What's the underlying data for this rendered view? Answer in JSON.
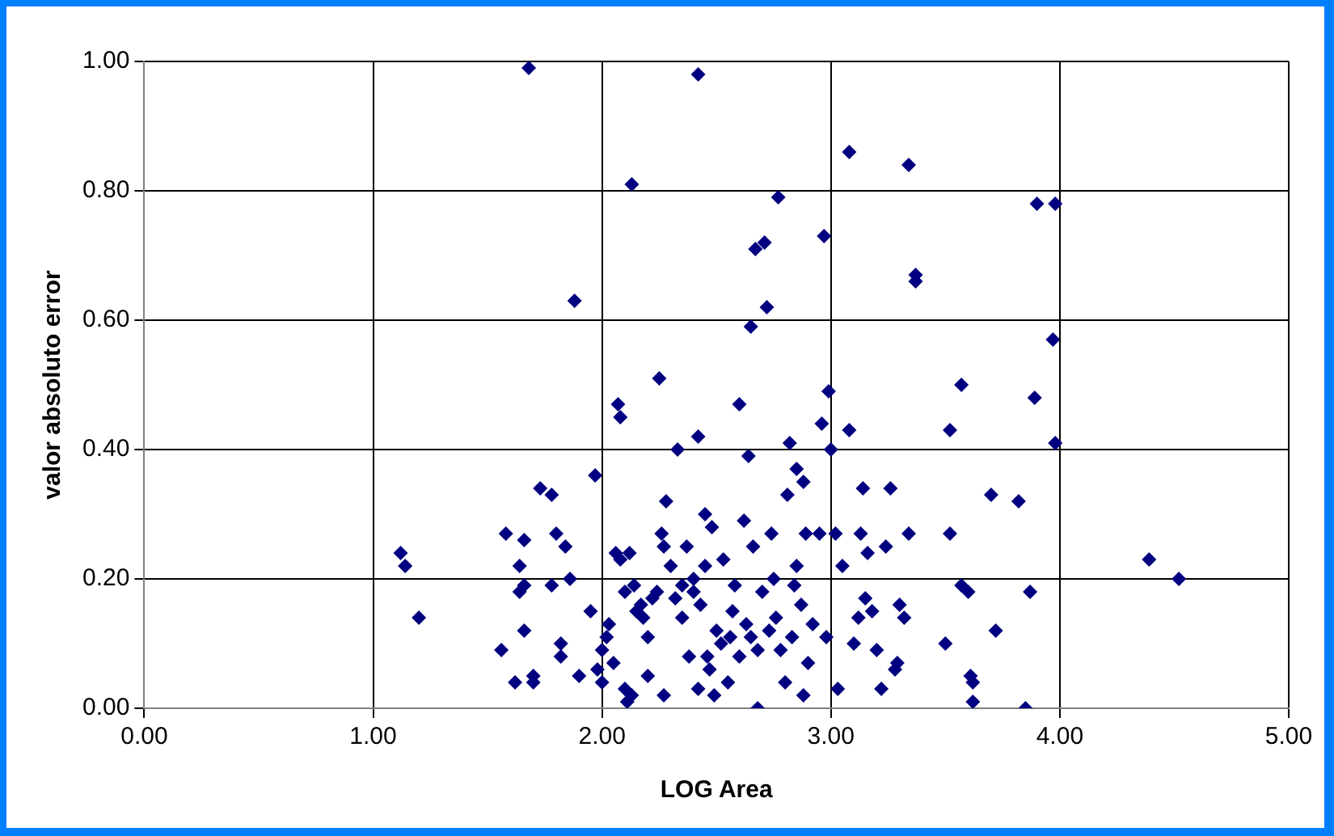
{
  "chart_data": {
    "type": "scatter",
    "xlabel": "LOG Area",
    "ylabel": "valor absoluto error",
    "marker": "diamond",
    "grid": true,
    "legend": false,
    "xlim": [
      0,
      5
    ],
    "xticks": [
      {
        "value": 0,
        "label": "0.00"
      },
      {
        "value": 1,
        "label": "1.00"
      },
      {
        "value": 2,
        "label": "2.00"
      },
      {
        "value": 3,
        "label": "3.00"
      },
      {
        "value": 4,
        "label": "4.00"
      },
      {
        "value": 5,
        "label": "5.00"
      }
    ],
    "ylim": [
      0,
      1
    ],
    "yticks": [
      {
        "value": 0,
        "label": "0.00"
      },
      {
        "value": 0.2,
        "label": "0.20"
      },
      {
        "value": 0.4,
        "label": "0.40"
      },
      {
        "value": 0.6,
        "label": "0.60"
      },
      {
        "value": 0.8,
        "label": "0.80"
      },
      {
        "value": 1,
        "label": "1.00"
      }
    ],
    "series": [
      {
        "color": "#000080",
        "x": [
          1.12,
          1.14,
          1.2,
          1.56,
          1.58,
          1.62,
          1.64,
          1.64,
          1.66,
          1.66,
          1.66,
          1.68,
          1.7,
          1.7,
          1.73,
          1.78,
          1.78,
          1.8,
          1.82,
          1.82,
          1.84,
          1.86,
          1.88,
          1.9,
          1.95,
          1.97,
          1.98,
          2.0,
          2.0,
          2.02,
          2.03,
          2.05,
          2.06,
          2.07,
          2.08,
          2.08,
          2.1,
          2.1,
          2.11,
          2.12,
          2.13,
          2.13,
          2.14,
          2.15,
          2.17,
          2.18,
          2.2,
          2.2,
          2.22,
          2.24,
          2.25,
          2.26,
          2.27,
          2.27,
          2.28,
          2.3,
          2.32,
          2.33,
          2.35,
          2.35,
          2.37,
          2.38,
          2.4,
          2.4,
          2.42,
          2.42,
          2.42,
          2.43,
          2.45,
          2.45,
          2.46,
          2.47,
          2.48,
          2.49,
          2.5,
          2.52,
          2.53,
          2.55,
          2.56,
          2.57,
          2.58,
          2.6,
          2.6,
          2.62,
          2.63,
          2.64,
          2.65,
          2.65,
          2.66,
          2.67,
          2.68,
          2.68,
          2.7,
          2.71,
          2.72,
          2.73,
          2.74,
          2.75,
          2.76,
          2.77,
          2.78,
          2.8,
          2.81,
          2.82,
          2.83,
          2.84,
          2.85,
          2.85,
          2.87,
          2.88,
          2.88,
          2.89,
          2.9,
          2.92,
          2.95,
          2.96,
          2.97,
          2.98,
          2.99,
          3.0,
          3.02,
          3.03,
          3.05,
          3.08,
          3.08,
          3.1,
          3.12,
          3.13,
          3.14,
          3.15,
          3.16,
          3.18,
          3.2,
          3.22,
          3.24,
          3.26,
          3.28,
          3.29,
          3.3,
          3.32,
          3.34,
          3.34,
          3.37,
          3.37,
          3.5,
          3.52,
          3.52,
          3.57,
          3.57,
          3.6,
          3.61,
          3.62,
          3.62,
          3.7,
          3.72,
          3.82,
          3.85,
          3.87,
          3.89,
          3.9,
          3.98,
          3.97,
          3.98,
          4.39,
          4.52
        ],
        "values": [
          0.24,
          0.22,
          0.14,
          0.09,
          0.27,
          0.04,
          0.22,
          0.18,
          0.19,
          0.26,
          0.12,
          0.99,
          0.05,
          0.04,
          0.34,
          0.33,
          0.19,
          0.27,
          0.08,
          0.1,
          0.25,
          0.2,
          0.63,
          0.05,
          0.15,
          0.36,
          0.06,
          0.04,
          0.09,
          0.11,
          0.13,
          0.07,
          0.24,
          0.47,
          0.45,
          0.23,
          0.18,
          0.03,
          0.01,
          0.24,
          0.02,
          0.81,
          0.19,
          0.15,
          0.16,
          0.14,
          0.05,
          0.11,
          0.17,
          0.18,
          0.51,
          0.27,
          0.02,
          0.25,
          0.32,
          0.22,
          0.17,
          0.4,
          0.14,
          0.19,
          0.25,
          0.08,
          0.2,
          0.18,
          0.98,
          0.42,
          0.03,
          0.16,
          0.3,
          0.22,
          0.08,
          0.06,
          0.28,
          0.02,
          0.12,
          0.1,
          0.23,
          0.04,
          0.11,
          0.15,
          0.19,
          0.08,
          0.47,
          0.29,
          0.13,
          0.39,
          0.59,
          0.11,
          0.25,
          0.71,
          0.0,
          0.09,
          0.18,
          0.72,
          0.62,
          0.12,
          0.27,
          0.2,
          0.14,
          0.79,
          0.09,
          0.04,
          0.33,
          0.41,
          0.11,
          0.19,
          0.37,
          0.22,
          0.16,
          0.02,
          0.35,
          0.27,
          0.07,
          0.13,
          0.27,
          0.44,
          0.73,
          0.11,
          0.49,
          0.4,
          0.27,
          0.03,
          0.22,
          0.86,
          0.43,
          0.1,
          0.14,
          0.27,
          0.34,
          0.17,
          0.24,
          0.15,
          0.09,
          0.03,
          0.25,
          0.34,
          0.06,
          0.07,
          0.16,
          0.14,
          0.84,
          0.27,
          0.66,
          0.67,
          0.1,
          0.43,
          0.27,
          0.5,
          0.19,
          0.18,
          0.05,
          0.04,
          0.01,
          0.33,
          0.12,
          0.32,
          0.0,
          0.18,
          0.48,
          0.78,
          0.78,
          0.57,
          0.41,
          0.23,
          0.2
        ]
      }
    ]
  }
}
